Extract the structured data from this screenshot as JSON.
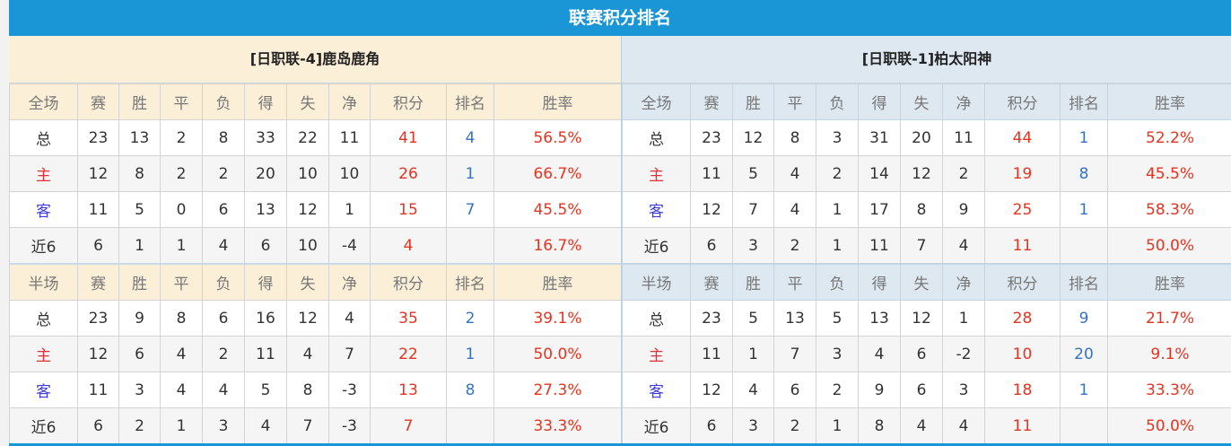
{
  "title": "联赛积分排名",
  "colors": {
    "accent": "#1a96d6",
    "points": "#e8321e",
    "rank": "#3573c3",
    "home_label": "#e0303a",
    "away_label": "#3b3be0"
  },
  "panels": [
    {
      "team": "[日职联-4]鹿岛鹿角",
      "sections": [
        {
          "header": [
            "全场",
            "赛",
            "胜",
            "平",
            "负",
            "得",
            "失",
            "净",
            "积分",
            "排名",
            "胜率"
          ],
          "rows": [
            [
              "总",
              "23",
              "13",
              "2",
              "8",
              "33",
              "22",
              "11",
              "41",
              "4",
              "56.5%"
            ],
            [
              "主",
              "12",
              "8",
              "2",
              "2",
              "20",
              "10",
              "10",
              "26",
              "1",
              "66.7%"
            ],
            [
              "客",
              "11",
              "5",
              "0",
              "6",
              "13",
              "12",
              "1",
              "15",
              "7",
              "45.5%"
            ],
            [
              "近6",
              "6",
              "1",
              "1",
              "4",
              "6",
              "10",
              "-4",
              "4",
              "",
              "16.7%"
            ]
          ]
        },
        {
          "header": [
            "半场",
            "赛",
            "胜",
            "平",
            "负",
            "得",
            "失",
            "净",
            "积分",
            "排名",
            "胜率"
          ],
          "rows": [
            [
              "总",
              "23",
              "9",
              "8",
              "6",
              "16",
              "12",
              "4",
              "35",
              "2",
              "39.1%"
            ],
            [
              "主",
              "12",
              "6",
              "4",
              "2",
              "11",
              "4",
              "7",
              "22",
              "1",
              "50.0%"
            ],
            [
              "客",
              "11",
              "3",
              "4",
              "4",
              "5",
              "8",
              "-3",
              "13",
              "8",
              "27.3%"
            ],
            [
              "近6",
              "6",
              "2",
              "1",
              "3",
              "4",
              "7",
              "-3",
              "7",
              "",
              "33.3%"
            ]
          ]
        }
      ]
    },
    {
      "team": "[日职联-1]柏太阳神",
      "sections": [
        {
          "header": [
            "全场",
            "赛",
            "胜",
            "平",
            "负",
            "得",
            "失",
            "净",
            "积分",
            "排名",
            "胜率"
          ],
          "rows": [
            [
              "总",
              "23",
              "12",
              "8",
              "3",
              "31",
              "20",
              "11",
              "44",
              "1",
              "52.2%"
            ],
            [
              "主",
              "11",
              "5",
              "4",
              "2",
              "14",
              "12",
              "2",
              "19",
              "8",
              "45.5%"
            ],
            [
              "客",
              "12",
              "7",
              "4",
              "1",
              "17",
              "8",
              "9",
              "25",
              "1",
              "58.3%"
            ],
            [
              "近6",
              "6",
              "3",
              "2",
              "1",
              "11",
              "7",
              "4",
              "11",
              "",
              "50.0%"
            ]
          ]
        },
        {
          "header": [
            "半场",
            "赛",
            "胜",
            "平",
            "负",
            "得",
            "失",
            "净",
            "积分",
            "排名",
            "胜率"
          ],
          "rows": [
            [
              "总",
              "23",
              "5",
              "13",
              "5",
              "13",
              "12",
              "1",
              "28",
              "9",
              "21.7%"
            ],
            [
              "主",
              "11",
              "1",
              "7",
              "3",
              "4",
              "6",
              "-2",
              "10",
              "20",
              "9.1%"
            ],
            [
              "客",
              "12",
              "4",
              "6",
              "2",
              "9",
              "6",
              "3",
              "18",
              "1",
              "33.3%"
            ],
            [
              "近6",
              "6",
              "3",
              "2",
              "1",
              "8",
              "4",
              "4",
              "11",
              "",
              "50.0%"
            ]
          ]
        }
      ]
    }
  ]
}
